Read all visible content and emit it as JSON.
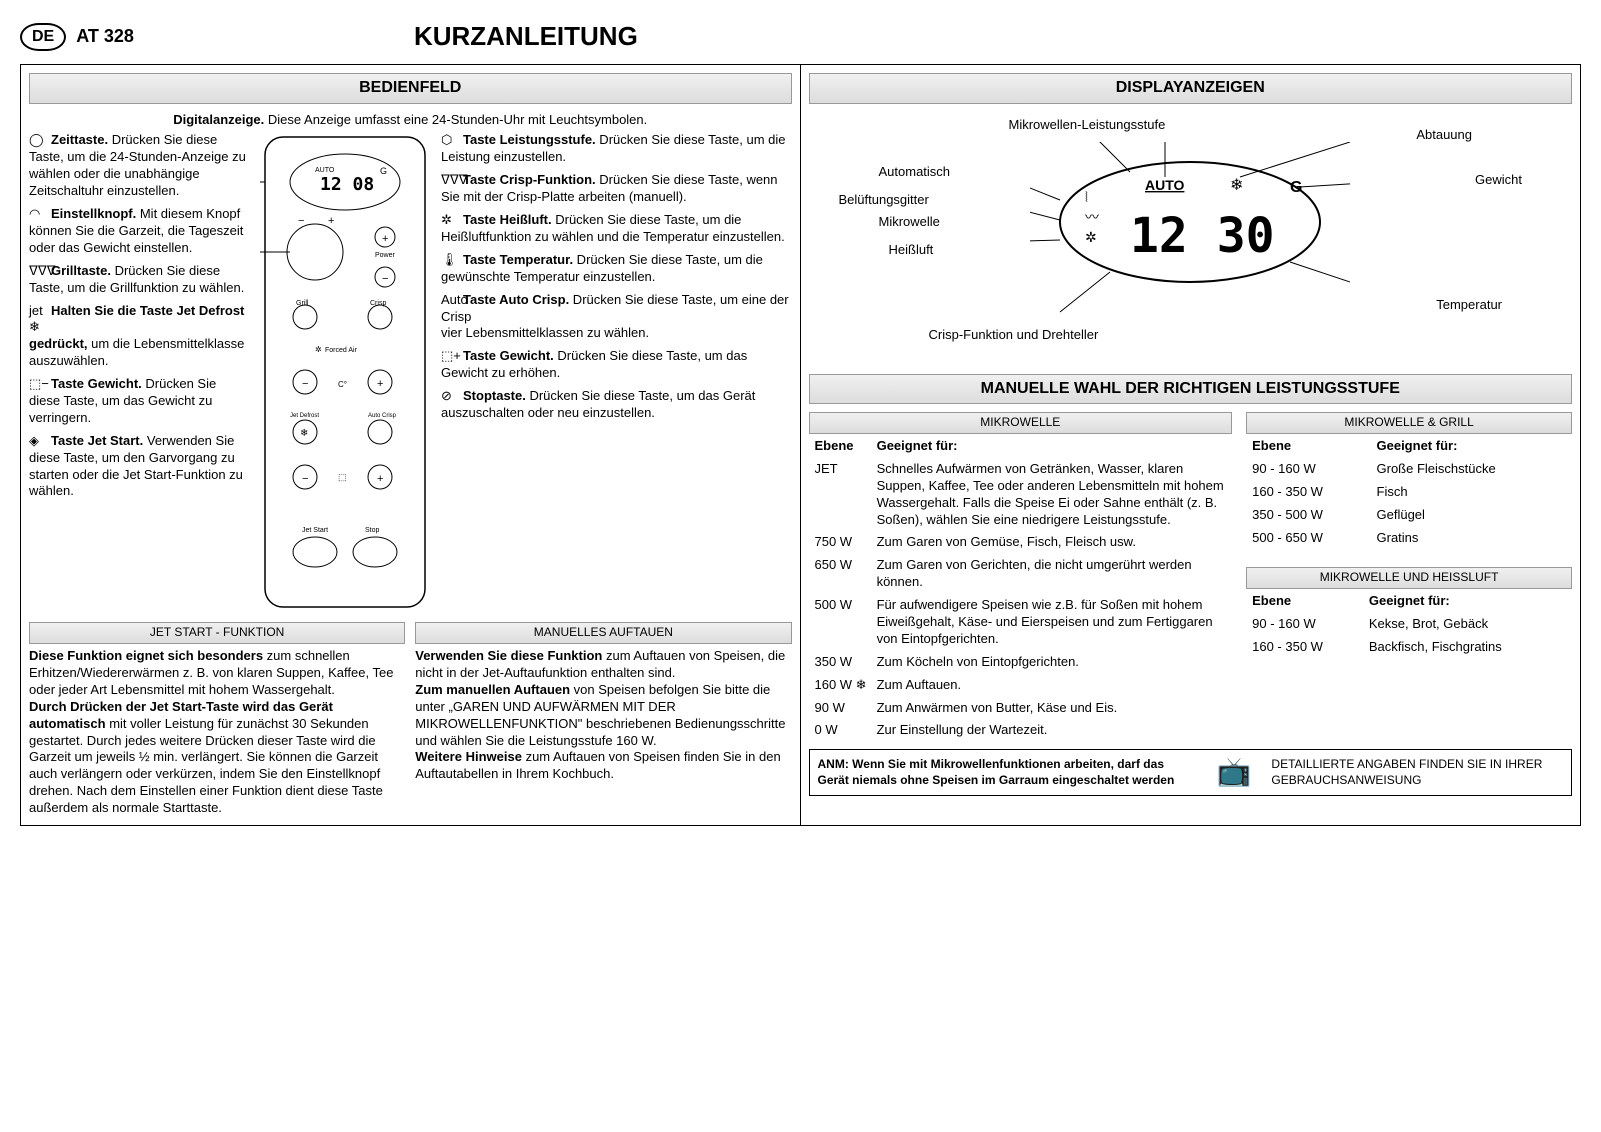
{
  "header": {
    "lang_badge": "DE",
    "model": "AT 328",
    "title": "KURZANLEITUNG"
  },
  "sections": {
    "bedienfeld": "BEDIENFELD",
    "displayanzeigen": "DISPLAYANZEIGEN",
    "powerlevels": "MANUELLE WAHL DER RICHTIGEN LEISTUNGSSTUFE"
  },
  "digital_display_heading": "Digitalanzeige.",
  "digital_display_text": "Diese Anzeige umfasst eine 24-Stunden-Uhr mit Leuchtsymbolen.",
  "left_callouts": [
    {
      "icon": "clock-icon",
      "glyph": "◯",
      "title": "Zeittaste.",
      "text": "Drücken Sie diese Taste, um die 24-Stunden-Anzeige zu wählen oder die unabhängige Zeitschaltuhr einzustellen."
    },
    {
      "icon": "knob-icon",
      "glyph": "◠",
      "title": "Einstellknopf.",
      "text": "Mit diesem Knopf können Sie die Garzeit, die Tageszeit oder das Gewicht einstellen."
    },
    {
      "icon": "grill-icon",
      "glyph": "ᐁᐁᐁ",
      "title": "Grilltaste.",
      "text": "Drücken Sie diese Taste, um die Grillfunktion zu wählen."
    },
    {
      "icon": "jet-defrost-icon",
      "glyph": "jet ❄",
      "title": "Halten Sie die Taste Jet Defrost gedrückt,",
      "text": "um die Lebensmittelklasse auszuwählen."
    },
    {
      "icon": "weight-minus-icon",
      "glyph": "⬚−",
      "title": "Taste Gewicht.",
      "text": "Drücken Sie diese Taste, um das Gewicht zu verringern."
    },
    {
      "icon": "jet-start-icon",
      "glyph": "◈",
      "title": "Taste Jet Start.",
      "text": "Verwenden Sie diese Taste, um den Garvorgang zu starten oder die Jet Start-Funktion zu wählen."
    }
  ],
  "right_callouts": [
    {
      "icon": "power-icon",
      "glyph": "⬡",
      "title": "Taste Leistungsstufe.",
      "text": "Drücken Sie diese Taste, um die Leistung einzustellen."
    },
    {
      "icon": "crisp-icon",
      "glyph": "ᐁᐁᐁ",
      "title": "Taste Crisp-Funktion.",
      "text": "Drücken Sie diese Taste, wenn Sie mit der Crisp-Platte arbeiten (manuell)."
    },
    {
      "icon": "fan-icon",
      "glyph": "✲",
      "title": "Taste Heißluft.",
      "text": "Drücken Sie diese Taste, um die Heißluftfunktion zu wählen und die Temperatur einzustellen."
    },
    {
      "icon": "temp-icon",
      "glyph": "🌡",
      "title": "Taste Temperatur.",
      "text": "Drücken Sie diese Taste, um die gewünschte Temperatur einzustellen."
    },
    {
      "icon": "auto-crisp-icon",
      "glyph": "Auto Crisp",
      "title": "Taste Auto Crisp.",
      "text": "Drücken Sie diese Taste, um eine der vier Lebensmittelklassen zu wählen."
    },
    {
      "icon": "weight-plus-icon",
      "glyph": "⬚+",
      "title": "Taste Gewicht.",
      "text": "Drücken Sie diese Taste, um das Gewicht zu erhöhen."
    },
    {
      "icon": "stop-icon",
      "glyph": "⊘",
      "title": "Stoptaste.",
      "text": "Drücken Sie diese Taste, um das Gerät auszuschalten oder neu einzustellen."
    }
  ],
  "jet_start": {
    "title": "JET START - FUNKTION",
    "text": "Diese Funktion eignet sich besonders zum schnellen Erhitzen/Wiedererwärmen z. B. von klaren Suppen, Kaffee, Tee oder jeder Art Lebensmittel mit hohem Wassergehalt. Durch Drücken der Jet Start-Taste wird das Gerät automatisch mit voller Leistung für zunächst 30 Sekunden gestartet. Durch jedes weitere Drücken dieser Taste wird die Garzeit um jeweils ½ min. verlängert. Sie können die Garzeit auch verlängern oder verkürzen, indem Sie den Einstellknopf drehen. Nach dem Einstellen einer Funktion dient diese Taste außerdem als normale Starttaste.",
    "bold1": "Diese Funktion eignet sich besonders",
    "bold2": "Durch Drücken der Jet Start-Taste wird das Gerät automatisch"
  },
  "manual_defrost": {
    "title": "MANUELLES AUFTAUEN",
    "text": "Verwenden Sie diese Funktion zum Auftauen von Speisen, die nicht in der Jet-Auftaufunktion enthalten sind. Zum manuellen Auftauen von Speisen befolgen Sie bitte die unter „GAREN UND AUFWÄRMEN MIT DER MIKROWELLENFUNKTION\" beschriebenen Bedienungsschritte und wählen Sie die Leistungsstufe 160 W. Weitere Hinweise zum Auftauen von Speisen finden Sie in den Auftautabellen in Ihrem Kochbuch.",
    "bold1": "Verwenden Sie diese Funktion",
    "bold2": "Zum manuellen Auftauen",
    "bold3": "Weitere Hinweise"
  },
  "display_labels": {
    "l1": "Mikrowellen-Leistungsstufe",
    "l2": "Automatisch",
    "l3": "Belüftungsgitter",
    "l4": "Mikrowelle",
    "l5": "Heißluft",
    "l6": "Crisp-Funktion und Drehteller",
    "r1": "Abtauung",
    "r2": "Gewicht",
    "r3": "Temperatur"
  },
  "display_svg": {
    "auto_text": "AUTO",
    "time_text": "12 30",
    "snowflake": "❄",
    "g_text": "G"
  },
  "panel_svg": {
    "time": "12 08",
    "labels": {
      "power": "Power",
      "grill": "Grill",
      "crisp": "Crisp",
      "forced_air": "Forced Air",
      "jet_defrost": "Jet Defrost",
      "auto_crisp": "Auto Crisp",
      "jet_start": "Jet Start",
      "stop": "Stop",
      "auto": "AUTO"
    }
  },
  "mw_table": {
    "header": "MIKROWELLE",
    "col1": "Ebene",
    "col2": "Geeignet für:",
    "rows": [
      {
        "level": "JET",
        "desc": "Schnelles Aufwärmen von Getränken, Wasser, klaren Suppen, Kaffee, Tee oder anderen Lebensmitteln mit hohem Wassergehalt. Falls die Speise Ei oder Sahne enthält (z. B. Soßen), wählen Sie eine niedrigere Leistungsstufe."
      },
      {
        "level": "750 W",
        "desc": "Zum Garen von Gemüse, Fisch, Fleisch usw."
      },
      {
        "level": "650 W",
        "desc": "Zum Garen von Gerichten, die nicht umgerührt werden können."
      },
      {
        "level": "500 W",
        "desc": "Für aufwendigere Speisen wie z.B. für Soßen mit hohem Eiweißgehalt, Käse- und Eierspeisen und zum Fertiggaren von Eintopfgerichten."
      },
      {
        "level": "350 W",
        "desc": "Zum Köcheln von Eintopfgerichten."
      },
      {
        "level": "160 W   ❄",
        "desc": "Zum Auftauen."
      },
      {
        "level": "90 W",
        "desc": "Zum Anwärmen von Butter, Käse und Eis."
      },
      {
        "level": "0 W",
        "desc": "Zur Einstellung der Wartezeit."
      }
    ]
  },
  "mw_grill_table": {
    "header": "MIKROWELLE & GRILL",
    "col1": "Ebene",
    "col2": "Geeignet für:",
    "rows": [
      {
        "level": "90 - 160 W",
        "desc": "Große Fleischstücke"
      },
      {
        "level": "160 - 350 W",
        "desc": "Fisch"
      },
      {
        "level": "350 - 500 W",
        "desc": "Geflügel"
      },
      {
        "level": "500 - 650 W",
        "desc": "Gratins"
      }
    ]
  },
  "mw_heiss_table": {
    "header": "MIKROWELLE UND HEISSLUFT",
    "col1": "Ebene",
    "col2": "Geeignet für:",
    "rows": [
      {
        "level": "90 - 160 W",
        "desc": "Kekse, Brot, Gebäck"
      },
      {
        "level": "160 - 350 W",
        "desc": "Backfisch, Fischgratins"
      }
    ]
  },
  "footer": {
    "warn": "ANM: Wenn Sie mit Mikrowellenfunktionen arbeiten, darf das Gerät niemals ohne Speisen im Garraum eingeschaltet werden",
    "info": "DETAILLIERTE ANGABEN FINDEN SIE IN IHRER GEBRAUCHSANWEISUNG"
  }
}
